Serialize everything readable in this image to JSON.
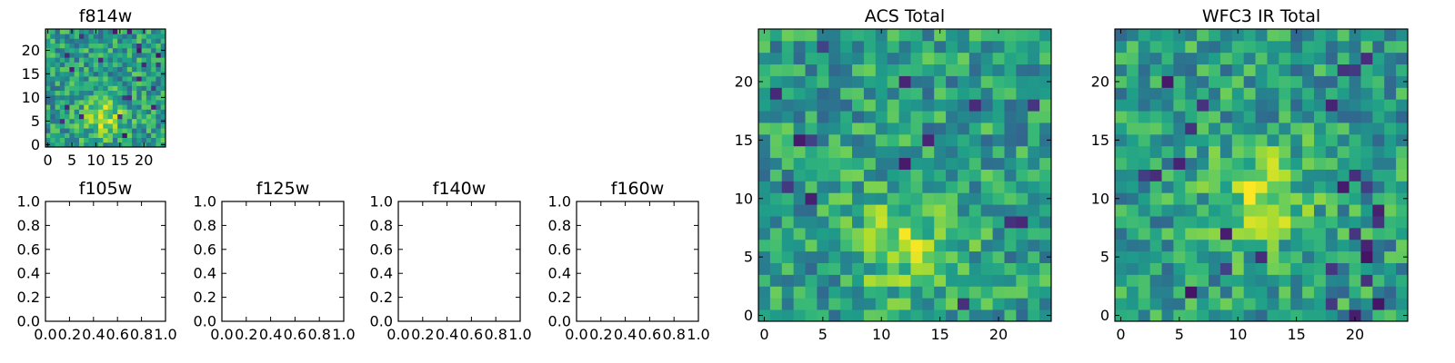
{
  "chart_data": [
    {
      "type": "heatmap",
      "title": "f814w",
      "grid_size": [
        25,
        25
      ],
      "xlim": [
        -0.5,
        24.5
      ],
      "ylim": [
        -0.5,
        24.5
      ],
      "x_ticks": [
        0,
        5,
        10,
        15,
        20
      ],
      "y_ticks": [
        0,
        5,
        10,
        15,
        20
      ],
      "colormap": "viridis",
      "color_range": [
        0,
        1
      ],
      "centroid": [
        12,
        6
      ],
      "grid": false,
      "values_note": ""
    },
    {
      "type": "scatter",
      "title": "f105w",
      "xlim": [
        0.0,
        1.0
      ],
      "ylim": [
        0.0,
        1.0
      ],
      "x_ticks": [
        "0.0",
        "0.2",
        "0.4",
        "0.6",
        "0.8",
        "1.0"
      ],
      "y_ticks": [
        "0.0",
        "0.2",
        "0.4",
        "0.6",
        "0.8",
        "1.0"
      ],
      "series": []
    },
    {
      "type": "scatter",
      "title": "f125w",
      "xlim": [
        0.0,
        1.0
      ],
      "ylim": [
        0.0,
        1.0
      ],
      "x_ticks": [
        "0.0",
        "0.2",
        "0.4",
        "0.6",
        "0.8",
        "1.0"
      ],
      "y_ticks": [
        "0.0",
        "0.2",
        "0.4",
        "0.6",
        "0.8",
        "1.0"
      ],
      "series": []
    },
    {
      "type": "scatter",
      "title": "f140w",
      "xlim": [
        0.0,
        1.0
      ],
      "ylim": [
        0.0,
        1.0
      ],
      "x_ticks": [
        "0.0",
        "0.2",
        "0.4",
        "0.6",
        "0.8",
        "1.0"
      ],
      "y_ticks": [
        "0.0",
        "0.2",
        "0.4",
        "0.6",
        "0.8",
        "1.0"
      ],
      "series": []
    },
    {
      "type": "scatter",
      "title": "f160w",
      "xlim": [
        0.0,
        1.0
      ],
      "ylim": [
        0.0,
        1.0
      ],
      "x_ticks": [
        "0.0",
        "0.2",
        "0.4",
        "0.6",
        "0.8",
        "1.0"
      ],
      "y_ticks": [
        "0.0",
        "0.2",
        "0.4",
        "0.6",
        "0.8",
        "1.0"
      ],
      "series": []
    },
    {
      "type": "heatmap",
      "title": "ACS Total",
      "grid_size": [
        25,
        25
      ],
      "xlim": [
        -0.5,
        24.5
      ],
      "ylim": [
        -0.5,
        24.5
      ],
      "x_ticks": [
        0,
        5,
        10,
        15,
        20
      ],
      "y_ticks": [
        0,
        5,
        10,
        15,
        20
      ],
      "colormap": "viridis",
      "color_range": [
        0,
        1
      ],
      "centroid": [
        12,
        6
      ],
      "grid": false
    },
    {
      "type": "heatmap",
      "title": "WFC3 IR Total",
      "grid_size": [
        25,
        25
      ],
      "xlim": [
        -0.5,
        24.5
      ],
      "ylim": [
        -0.5,
        24.5
      ],
      "x_ticks": [
        0,
        5,
        10,
        15,
        20
      ],
      "y_ticks": [
        0,
        5,
        10,
        15,
        20
      ],
      "colormap": "viridis",
      "color_range": [
        0,
        1
      ],
      "centroid": [
        12,
        10
      ],
      "grid": false
    }
  ]
}
